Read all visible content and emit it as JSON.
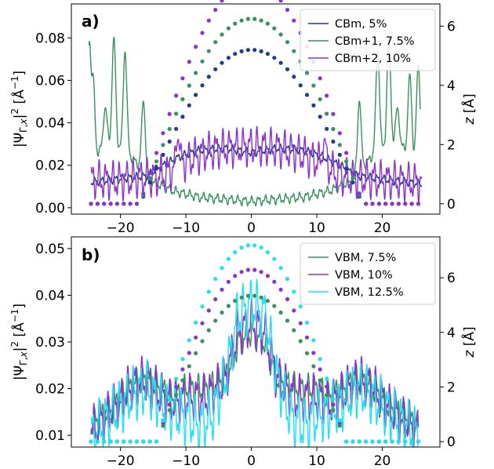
{
  "chart_data": [
    {
      "type": "line",
      "panel_label": "a)",
      "ylabel": "|Ψ_{Γ,x}|² [Å⁻¹]",
      "y2label": "z [Å]",
      "xlim": [
        -27.5,
        28.8
      ],
      "ylim": [
        -0.003,
        0.096
      ],
      "y2lim": [
        -0.35,
        6.75
      ],
      "xticks": [
        -20,
        -10,
        0,
        10,
        20
      ],
      "yticks": [
        0.0,
        0.02,
        0.04,
        0.06,
        0.08
      ],
      "y2ticks": [
        0,
        2,
        4,
        6
      ],
      "legend_position": "top-right",
      "series": [
        {
          "name": "CBm, 5%",
          "color": "#1f3d8c",
          "env": [
            [
              -24.5,
              0.012
            ],
            [
              -16,
              0.015
            ],
            [
              -14,
              0.019
            ],
            [
              -11,
              0.024
            ],
            [
              -8,
              0.027
            ],
            [
              -4,
              0.028
            ],
            [
              0,
              0.026
            ],
            [
              4,
              0.028
            ],
            [
              8,
              0.027
            ],
            [
              11,
              0.024
            ],
            [
              14,
              0.019
            ],
            [
              16,
              0.015
            ],
            [
              24,
              0.012
            ],
            [
              26,
              0.011
            ]
          ],
          "osc": 0.0022,
          "peaks": []
        },
        {
          "name": "CBm+1, 7.5%",
          "color": "#3a9060",
          "env": [
            [
              -24.8,
              0.018
            ],
            [
              -22.5,
              0.03
            ],
            [
              -19,
              0.026
            ],
            [
              -17,
              0.019
            ],
            [
              -15,
              0.012
            ],
            [
              -12,
              0.008
            ],
            [
              -8,
              0.005
            ],
            [
              -4,
              0.004
            ],
            [
              0,
              0.003
            ],
            [
              4,
              0.004
            ],
            [
              8,
              0.005
            ],
            [
              12,
              0.008
            ],
            [
              15,
              0.012
            ],
            [
              17,
              0.019
            ],
            [
              19,
              0.026
            ],
            [
              22.5,
              0.03
            ],
            [
              25.8,
              0.02
            ]
          ],
          "osc": 0.0025,
          "peaks": [
            [
              -24.7,
              0.085
            ],
            [
              -24.2,
              0.065
            ],
            [
              -22.3,
              0.048
            ],
            [
              -21.0,
              0.083
            ],
            [
              -19.3,
              0.076
            ],
            [
              -16.5,
              0.052
            ],
            [
              16.5,
              0.052
            ],
            [
              19.3,
              0.076
            ],
            [
              21.0,
              0.083
            ],
            [
              22.3,
              0.048
            ],
            [
              24.2,
              0.065
            ],
            [
              25.5,
              0.07
            ]
          ]
        },
        {
          "name": "CBm+2, 10%",
          "color": "#8a35c9",
          "env": [
            [
              -24.5,
              0.013
            ],
            [
              -20,
              0.013
            ],
            [
              -17,
              0.014
            ],
            [
              -15,
              0.014
            ],
            [
              -13,
              0.016
            ],
            [
              -10,
              0.022
            ],
            [
              -7,
              0.026
            ],
            [
              -4,
              0.028
            ],
            [
              0,
              0.029
            ],
            [
              4,
              0.028
            ],
            [
              7,
              0.026
            ],
            [
              10,
              0.022
            ],
            [
              13,
              0.016
            ],
            [
              15,
              0.014
            ],
            [
              17,
              0.014
            ],
            [
              20,
              0.013
            ],
            [
              26,
              0.012
            ]
          ],
          "osc": 0.01,
          "peaks": [
            [
              -11.2,
              0.033
            ],
            [
              11.2,
              0.033
            ]
          ]
        }
      ],
      "dots": [
        {
          "color": "#1f3d8c",
          "amp": 5.2,
          "period": 34
        },
        {
          "color": "#3a9060",
          "amp": 6.25,
          "period": 34
        },
        {
          "color": "#8a35c9",
          "amp": 7.5,
          "period": 34
        }
      ]
    },
    {
      "type": "line",
      "panel_label": "b)",
      "ylabel": "|Ψ_{Γ,x}|² [Å⁻¹]",
      "y2label": "z [Å]",
      "xlim": [
        -27.5,
        28.8
      ],
      "ylim": [
        0.0075,
        0.0525
      ],
      "y2lim": [
        -0.2,
        7.5
      ],
      "xticks": [
        -20,
        -10,
        0,
        10,
        20
      ],
      "yticks": [
        0.01,
        0.02,
        0.03,
        0.04,
        0.05
      ],
      "y2ticks": [
        0,
        2,
        4,
        6
      ],
      "legend_position": "top-right",
      "series": [
        {
          "name": "VBM, 7.5%",
          "color": "#3a9060",
          "env": [
            [
              -24.5,
              0.012
            ],
            [
              -21,
              0.016
            ],
            [
              -18,
              0.021
            ],
            [
              -16,
              0.022
            ],
            [
              -14,
              0.02
            ],
            [
              -12,
              0.018
            ],
            [
              -10,
              0.02
            ],
            [
              -7,
              0.02
            ],
            [
              -4,
              0.022
            ],
            [
              -2,
              0.03
            ],
            [
              0,
              0.032
            ],
            [
              2,
              0.03
            ],
            [
              4,
              0.022
            ],
            [
              7,
              0.02
            ],
            [
              10,
              0.02
            ],
            [
              12,
              0.018
            ],
            [
              14,
              0.02
            ],
            [
              16,
              0.022
            ],
            [
              18,
              0.021
            ],
            [
              21,
              0.016
            ],
            [
              25.5,
              0.012
            ]
          ],
          "osc": 0.0035,
          "peaks": []
        },
        {
          "name": "VBM, 10%",
          "color": "#8a35c9",
          "env": [
            [
              -24.5,
              0.011
            ],
            [
              -21,
              0.016
            ],
            [
              -18,
              0.021
            ],
            [
              -16,
              0.022
            ],
            [
              -14,
              0.019
            ],
            [
              -12,
              0.017
            ],
            [
              -10,
              0.018
            ],
            [
              -7,
              0.018
            ],
            [
              -4,
              0.022
            ],
            [
              -2,
              0.032
            ],
            [
              0,
              0.034
            ],
            [
              2,
              0.032
            ],
            [
              4,
              0.022
            ],
            [
              7,
              0.018
            ],
            [
              10,
              0.018
            ],
            [
              12,
              0.017
            ],
            [
              14,
              0.019
            ],
            [
              16,
              0.022
            ],
            [
              18,
              0.021
            ],
            [
              21,
              0.016
            ],
            [
              25.5,
              0.011
            ]
          ],
          "osc": 0.0055,
          "peaks": []
        },
        {
          "name": "VBM, 12.5%",
          "color": "#22e0ee",
          "env": [
            [
              -24.5,
              0.01
            ],
            [
              -21,
              0.015
            ],
            [
              -18,
              0.019
            ],
            [
              -16,
              0.02
            ],
            [
              -14,
              0.017
            ],
            [
              -12,
              0.015
            ],
            [
              -10,
              0.014
            ],
            [
              -8,
              0.012
            ],
            [
              -6,
              0.014
            ],
            [
              -4,
              0.022
            ],
            [
              -2,
              0.036
            ],
            [
              0,
              0.038
            ],
            [
              2,
              0.036
            ],
            [
              4,
              0.022
            ],
            [
              6,
              0.014
            ],
            [
              8,
              0.012
            ],
            [
              10,
              0.014
            ],
            [
              12,
              0.015
            ],
            [
              14,
              0.017
            ],
            [
              16,
              0.02
            ],
            [
              18,
              0.019
            ],
            [
              21,
              0.015
            ],
            [
              25.5,
              0.01
            ]
          ],
          "osc": 0.0065,
          "peaks": []
        }
      ],
      "dots": [
        {
          "color": "#3a9060",
          "amp": 5.35,
          "period": 29
        },
        {
          "color": "#8a35c9",
          "amp": 6.3,
          "period": 29
        },
        {
          "color": "#22e0ee",
          "amp": 7.2,
          "period": 29
        }
      ]
    }
  ]
}
